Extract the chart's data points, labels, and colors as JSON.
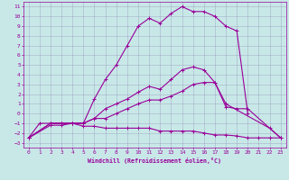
{
  "title": "",
  "xlabel": "Windchill (Refroidissement éolien,°C)",
  "bg_color": "#c8e8e8",
  "line_color": "#990099",
  "grid_color": "#9999bb",
  "xlim": [
    -0.5,
    23.5
  ],
  "ylim": [
    -3.5,
    11.5
  ],
  "xticks": [
    0,
    1,
    2,
    3,
    4,
    5,
    6,
    7,
    8,
    9,
    10,
    11,
    12,
    13,
    14,
    15,
    16,
    17,
    18,
    19,
    20,
    21,
    22,
    23
  ],
  "yticks": [
    -3,
    -2,
    -1,
    0,
    1,
    2,
    3,
    4,
    5,
    6,
    7,
    8,
    9,
    10,
    11
  ],
  "series": [
    {
      "x": [
        0,
        1,
        2,
        3,
        4,
        5,
        6,
        7,
        8,
        9,
        10,
        11,
        12,
        13,
        14,
        15,
        16,
        17,
        18,
        19,
        20
      ],
      "y": [
        -2.5,
        -1,
        -1,
        -1,
        -1,
        -1,
        1.5,
        3.5,
        5,
        7,
        9,
        9.8,
        9.3,
        10.3,
        11,
        10.5,
        10.5,
        10,
        9,
        8.5,
        0
      ]
    },
    {
      "x": [
        0,
        2,
        3,
        4,
        5,
        6,
        7,
        8,
        9,
        10,
        11,
        12,
        13,
        14,
        15,
        16,
        17,
        18,
        22,
        23
      ],
      "y": [
        -2.5,
        -1,
        -1,
        -1,
        -1,
        -0.5,
        0.5,
        1.0,
        1.5,
        2.2,
        2.8,
        2.5,
        3.5,
        4.5,
        4.8,
        4.5,
        3.2,
        1.0,
        -1.5,
        -2.5
      ]
    },
    {
      "x": [
        0,
        2,
        3,
        4,
        5,
        6,
        7,
        8,
        9,
        10,
        11,
        12,
        13,
        14,
        15,
        16,
        17,
        18,
        19,
        20,
        23
      ],
      "y": [
        -2.5,
        -1,
        -1,
        -1,
        -1,
        -0.5,
        -0.5,
        0,
        0.5,
        1,
        1.4,
        1.4,
        1.8,
        2.3,
        3.0,
        3.2,
        3.2,
        0.7,
        0.5,
        0.5,
        -2.5
      ]
    },
    {
      "x": [
        0,
        2,
        3,
        4,
        5,
        6,
        7,
        8,
        9,
        10,
        11,
        12,
        13,
        14,
        15,
        16,
        17,
        18,
        19,
        20,
        21,
        22,
        23
      ],
      "y": [
        -2.5,
        -1.2,
        -1.2,
        -1,
        -1.3,
        -1.3,
        -1.5,
        -1.5,
        -1.5,
        -1.5,
        -1.5,
        -1.8,
        -1.8,
        -1.8,
        -1.8,
        -2,
        -2.2,
        -2.2,
        -2.3,
        -2.5,
        -2.5,
        -2.5,
        -2.5
      ]
    }
  ]
}
